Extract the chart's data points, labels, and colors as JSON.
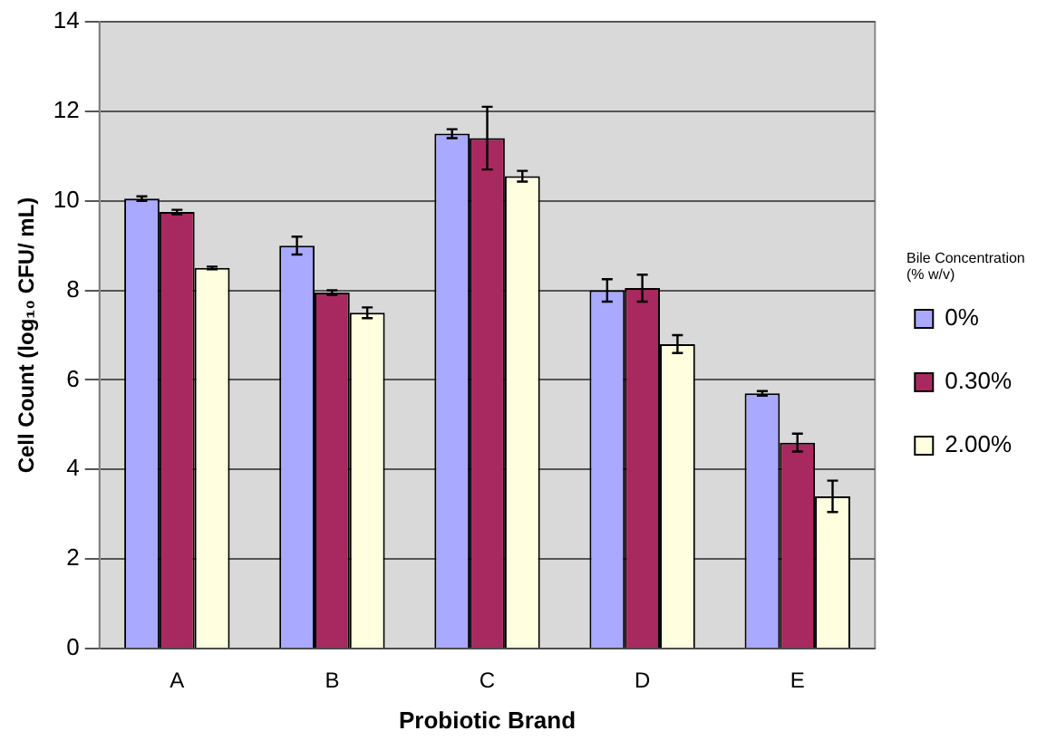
{
  "chart_data": {
    "type": "bar",
    "xlabel": "Probiotic Brand",
    "ylabel": "Cell Count (log₁₀ CFU/ mL)",
    "legend_title": "Bile Concentration (% w/v)",
    "categories": [
      "A",
      "B",
      "C",
      "D",
      "E"
    ],
    "series": [
      {
        "name": "0%",
        "color": "#a9a9ff",
        "values": [
          10.05,
          9.0,
          11.5,
          8.0,
          5.7
        ],
        "errors": [
          0.05,
          0.2,
          0.1,
          0.25,
          0.05
        ]
      },
      {
        "name": "0.30%",
        "color": "#a8295f",
        "values": [
          9.75,
          7.95,
          11.4,
          8.05,
          4.6
        ],
        "errors": [
          0.05,
          0.05,
          0.7,
          0.3,
          0.2
        ]
      },
      {
        "name": "2.00%",
        "color": "#ffffe0",
        "values": [
          8.5,
          7.5,
          10.55,
          6.8,
          3.4
        ],
        "errors": [
          0.03,
          0.12,
          0.12,
          0.2,
          0.35
        ]
      }
    ],
    "ylim": [
      0,
      14
    ],
    "yticks": [
      0,
      2,
      4,
      6,
      8,
      10,
      12,
      14
    ],
    "grid": "y",
    "legend": "right"
  }
}
